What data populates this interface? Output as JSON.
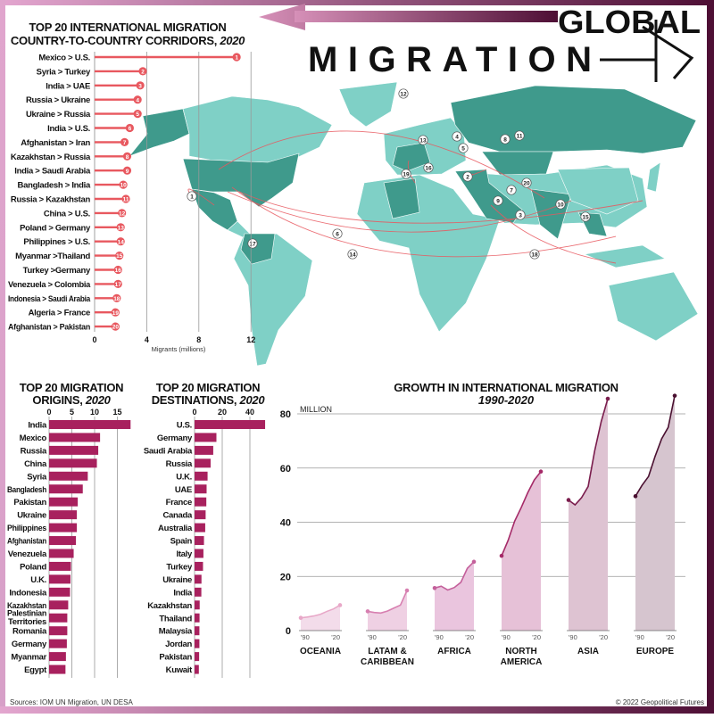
{
  "header": {
    "title_line1": "GLOBAL",
    "title_line2": "MIGRATION",
    "accent_color": "#5a1640"
  },
  "footer": {
    "sources": "Sources: IOM UN Migration, UN DESA",
    "copyright": "© 2022 Geopolitical Futures"
  },
  "colors": {
    "corridor": "#e8585f",
    "bar": "#a8215e",
    "map_highlight": "#3f9a8c",
    "map_base": "#7fd0c6"
  },
  "chart_data": [
    {
      "type": "bar",
      "orientation": "horizontal",
      "title": "TOP 20 INTERNATIONAL MIGRATION",
      "title_line2": "COUNTRY-TO-COUNTRY CORRIDORS,",
      "title_year": "2020",
      "xlabel": "Migrants (millions)",
      "xlim": [
        0,
        14
      ],
      "ticks": [
        "0",
        "4",
        "8",
        "12"
      ],
      "grid": true,
      "categories": [
        "Mexico > U.S.",
        "Syria > Turkey",
        "India > UAE",
        "Russia > Ukraine",
        "Ukraine > Russia",
        "India > U.S.",
        "Afghanistan > Iran",
        "Kazakhstan > Russia",
        "India > Saudi Arabia",
        "Bangladesh > India",
        "Russia > Kazakhstan",
        "China > U.S.",
        "Poland > Germany",
        "Philippines > U.S.",
        "Myanmar >Thailand",
        "Turkey >Germany",
        "Venezuela > Colombia",
        "Indonesia > Saudi Arabia",
        "Algeria > France",
        "Afghanistan > Pakistan"
      ],
      "ranks": [
        "1",
        "2",
        "3",
        "4",
        "5",
        "6",
        "7",
        "8",
        "9",
        "10",
        "11",
        "12",
        "13",
        "14",
        "15",
        "16",
        "17",
        "18",
        "19",
        "20"
      ],
      "values": [
        10.9,
        3.7,
        3.5,
        3.3,
        3.3,
        2.7,
        2.3,
        2.5,
        2.5,
        2.2,
        2.4,
        2.1,
        2.0,
        2.0,
        1.9,
        1.8,
        1.8,
        1.7,
        1.6,
        1.6
      ]
    },
    {
      "type": "bar",
      "orientation": "horizontal",
      "title": "TOP 20 MIGRATION",
      "title_line2": "ORIGINS,",
      "title_year": "2020",
      "xlim": [
        0,
        18
      ],
      "ticks": [
        "0",
        "5",
        "10",
        "15"
      ],
      "grid": true,
      "categories": [
        "India",
        "Mexico",
        "Russia",
        "China",
        "Syria",
        "Bangladesh",
        "Pakistan",
        "Ukraine",
        "Philippines",
        "Afghanistan",
        "Venezuela",
        "Poland",
        "U.K.",
        "Indonesia",
        "Kazakhstan",
        "Palestinian Territories",
        "Romania",
        "Germany",
        "Myanmar",
        "Egypt"
      ],
      "values": [
        17.9,
        11.2,
        10.8,
        10.5,
        8.5,
        7.4,
        6.3,
        6.1,
        6.1,
        5.9,
        5.4,
        4.8,
        4.7,
        4.6,
        4.2,
        4.0,
        4.0,
        3.9,
        3.7,
        3.6
      ]
    },
    {
      "type": "bar",
      "orientation": "horizontal",
      "title": "TOP 20 MIGRATION",
      "title_line2": "DESTINATIONS,",
      "title_year": "2020",
      "xlim": [
        0,
        52
      ],
      "ticks": [
        "0",
        "20",
        "40"
      ],
      "grid": true,
      "categories": [
        "U.S.",
        "Germany",
        "Saudi Arabia",
        "Russia",
        "U.K.",
        "UAE",
        "France",
        "Canada",
        "Australia",
        "Spain",
        "Italy",
        "Turkey",
        "Ukraine",
        "India",
        "Kazakhstan",
        "Thailand",
        "Malaysia",
        "Jordan",
        "Pakistan",
        "Kuwait"
      ],
      "values": [
        51.0,
        15.8,
        13.5,
        11.6,
        9.4,
        8.7,
        8.5,
        8.0,
        7.7,
        6.8,
        6.4,
        6.1,
        5.0,
        4.9,
        3.7,
        3.6,
        3.5,
        3.5,
        3.3,
        3.1
      ]
    },
    {
      "type": "area",
      "title": "GROWTH IN INTERNATIONAL MIGRATION",
      "subtitle": "1990-2020",
      "ylabel": "MILLION",
      "ylim": [
        0,
        85
      ],
      "yticks": [
        "0",
        "20",
        "40",
        "60",
        "80"
      ],
      "grid": true,
      "x": [
        1990,
        1995,
        2000,
        2005,
        2010,
        2015,
        2020
      ],
      "x_tick_labels": [
        "'90",
        "'20"
      ],
      "series": [
        {
          "name": "OCEANIA",
          "name_line2": "",
          "values": [
            4.7,
            5.0,
            5.4,
            6.0,
            7.1,
            8.0,
            9.4
          ],
          "line": "#e8a8c8",
          "fill": "#f3dcea"
        },
        {
          "name": "LATAM &",
          "name_line2": "CARIBBEAN",
          "values": [
            7.1,
            6.7,
            6.5,
            7.2,
            8.3,
            9.4,
            14.8
          ],
          "line": "#d77fb0",
          "fill": "#efd0e3"
        },
        {
          "name": "AFRICA",
          "name_line2": "",
          "values": [
            15.7,
            16.4,
            15.0,
            15.9,
            17.8,
            23.0,
            25.4
          ],
          "line": "#c4609b",
          "fill": "#eac5de"
        },
        {
          "name": "NORTH",
          "name_line2": "AMERICA",
          "values": [
            27.6,
            33.3,
            40.4,
            45.4,
            50.9,
            55.6,
            58.7
          ],
          "line": "#a52a68",
          "fill": "#e6c1d7"
        },
        {
          "name": "ASIA",
          "name_line2": "",
          "values": [
            48.2,
            46.4,
            49.1,
            53.2,
            66.4,
            77.2,
            85.6
          ],
          "line": "#7a1d4d",
          "fill": "#dec3d2"
        },
        {
          "name": "EUROPE",
          "name_line2": "",
          "values": [
            49.6,
            53.6,
            56.9,
            64.3,
            70.8,
            75.0,
            86.7
          ],
          "line": "#4a1030",
          "fill": "#d6c5cf"
        }
      ]
    }
  ]
}
